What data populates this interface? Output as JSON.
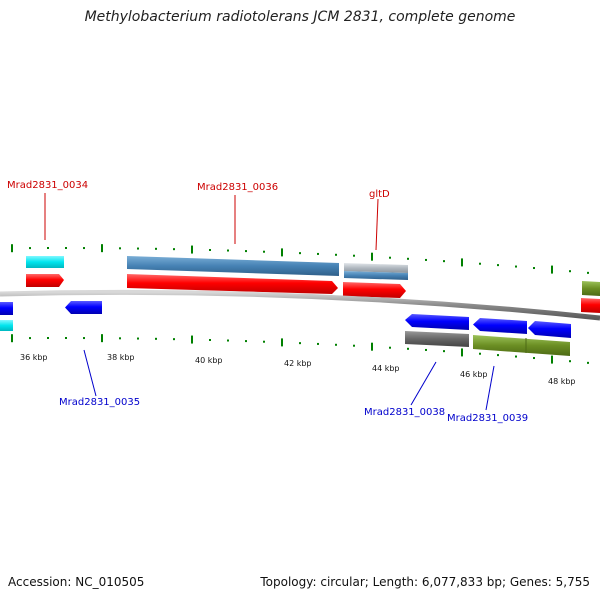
{
  "title": "Methylobacterium radiotolerans JCM 2831, complete genome",
  "footer": {
    "accession": "Accession: NC_010505",
    "stats": "Topology: circular; Length: 6,077,833 bp; Genes: 5,755"
  },
  "ticks": [
    "36 kbp",
    "38 kbp",
    "40 kbp",
    "42 kbp",
    "44 kbp",
    "46 kbp",
    "48 kbp"
  ],
  "genes": [
    {
      "id": "Mrad2831_0034",
      "label": "Mrad2831_0034",
      "strand": "+",
      "color": "#cc0000"
    },
    {
      "id": "Mrad2831_0035",
      "label": "Mrad2831_0035",
      "strand": "-",
      "color": "#0000cc"
    },
    {
      "id": "Mrad2831_0036",
      "label": "Mrad2831_0036",
      "strand": "+",
      "color": "#cc0000"
    },
    {
      "id": "gltD",
      "label": "gltD",
      "strand": "+",
      "color": "#cc0000"
    },
    {
      "id": "Mrad2831_0038",
      "label": "Mrad2831_0038",
      "strand": "-",
      "color": "#0000cc"
    },
    {
      "id": "Mrad2831_0039",
      "label": "Mrad2831_0039",
      "strand": "-",
      "color": "#0000cc"
    }
  ],
  "colors": {
    "forward_cds": "#ff0000",
    "reverse_cds": "#0000ff",
    "cyan_feature": "#00e5ee",
    "steelblue_feature": "#4682b4",
    "silver_feature": "#b0b8c0",
    "gray_feature": "#666666",
    "olive_feature": "#6b8e23",
    "backbone": "#888888",
    "tick_mark": "#008000"
  }
}
